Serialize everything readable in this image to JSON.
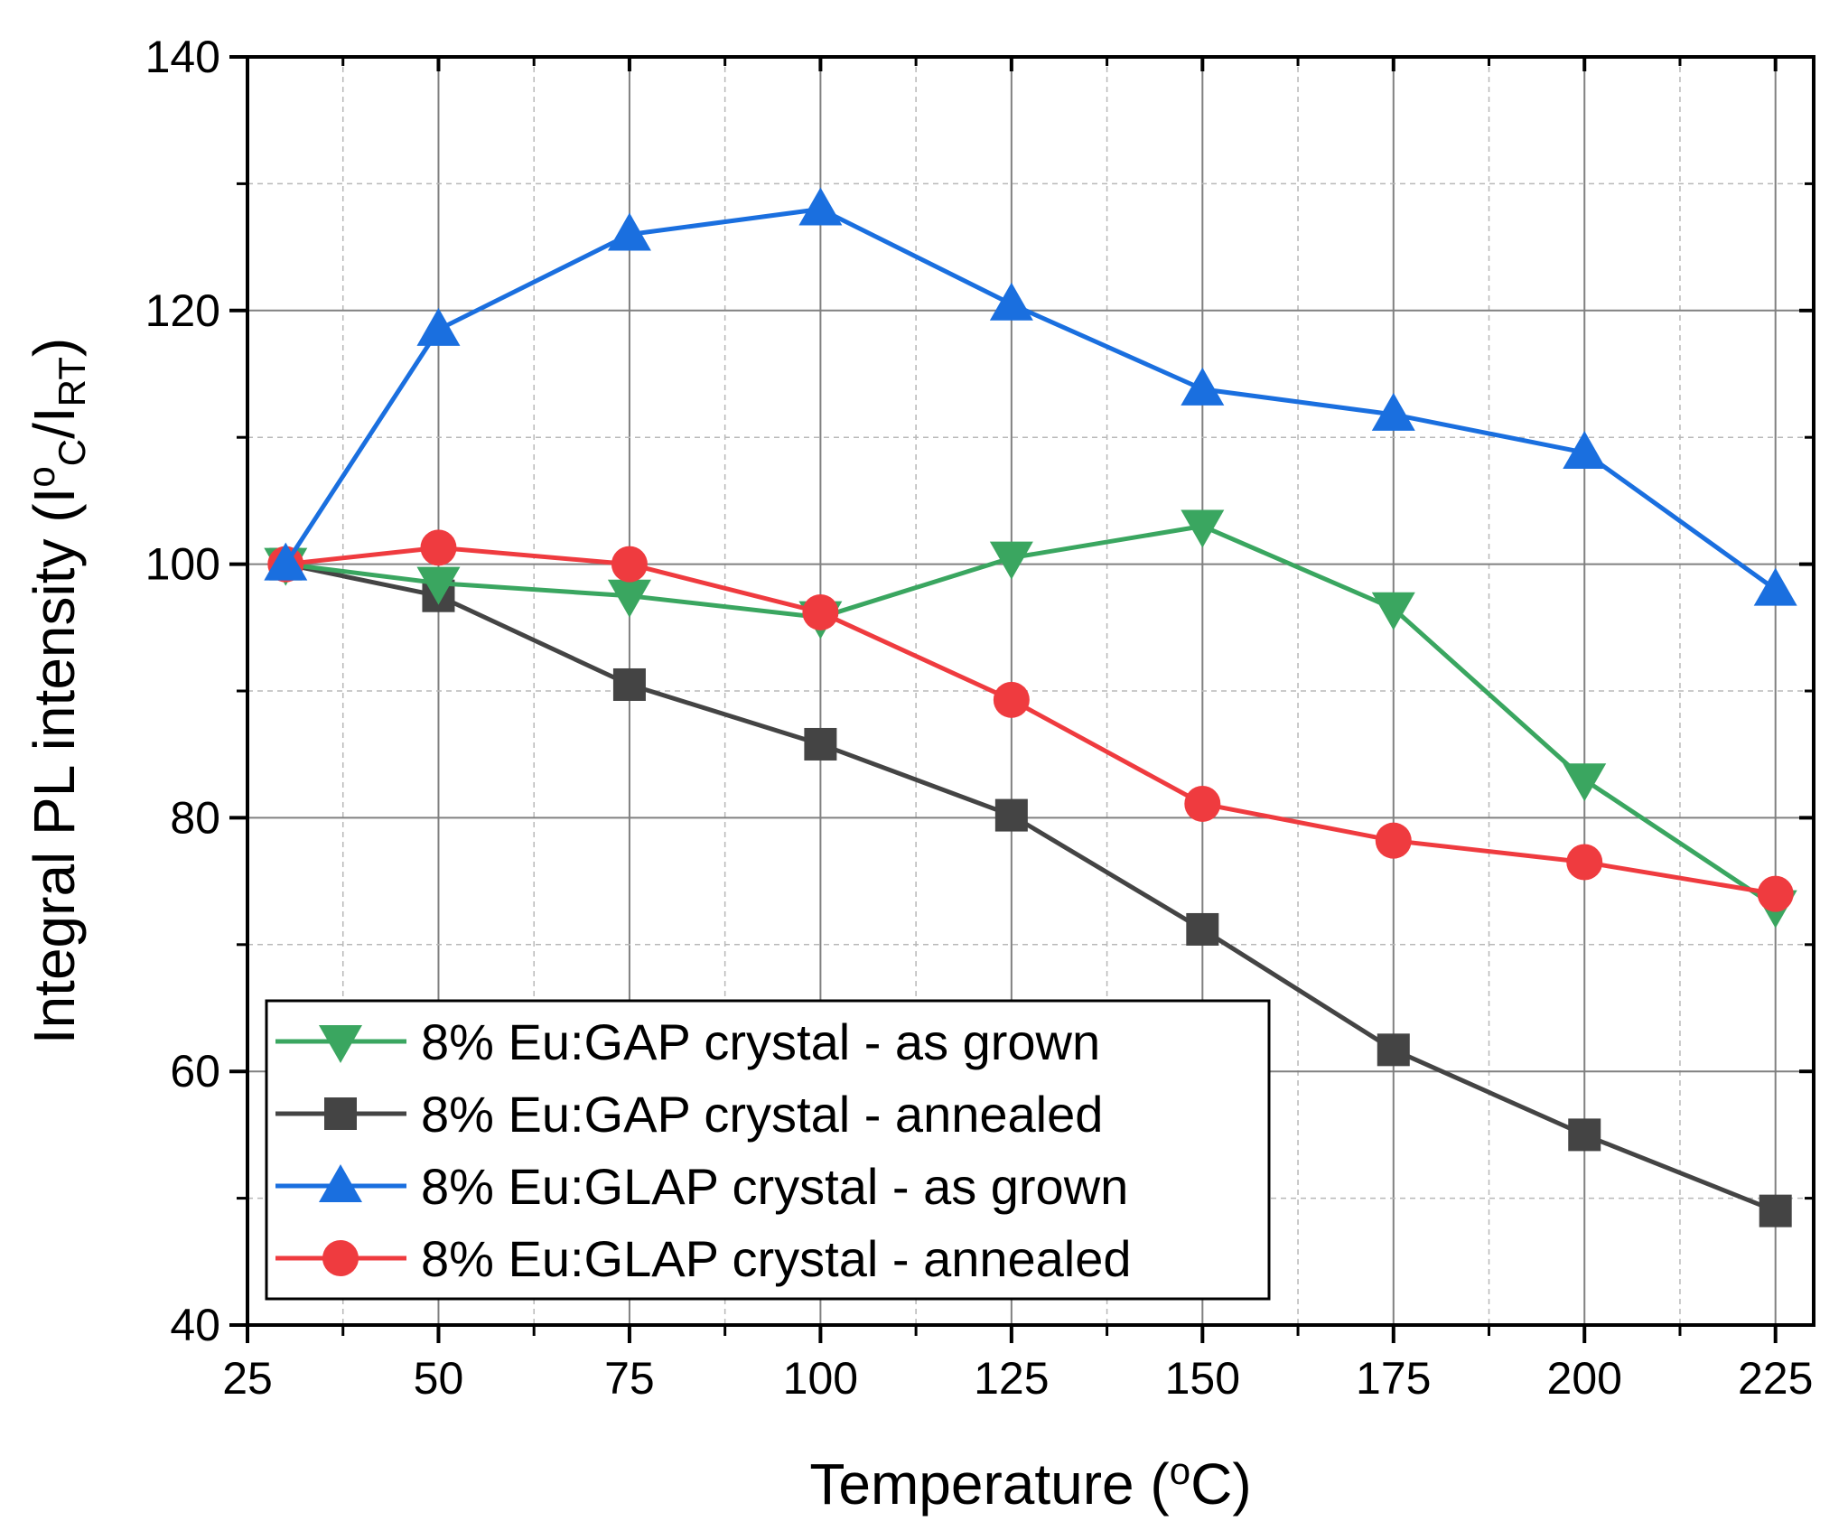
{
  "chart_data": {
    "type": "line",
    "title": "",
    "xlabel": {
      "main": "Temperature (",
      "sup": "o",
      "tail": "C)"
    },
    "ylabel": {
      "p1": "Integral PL intensity (I",
      "p2": "o",
      "sub1": "C",
      "p3": "/I",
      "sub2": "RT",
      "p4": ")"
    },
    "x": [
      30,
      50,
      75,
      100,
      125,
      150,
      175,
      200,
      225
    ],
    "xlim": [
      25,
      230
    ],
    "ylim": [
      40,
      140
    ],
    "xticks": [
      25,
      50,
      75,
      100,
      125,
      150,
      175,
      200,
      225
    ],
    "yticks": [
      40,
      60,
      80,
      100,
      120,
      140
    ],
    "xtick_labels": [
      "25",
      "50",
      "75",
      "100",
      "125",
      "150",
      "175",
      "200",
      "225"
    ],
    "ytick_labels": [
      "40",
      "60",
      "80",
      "100",
      "120",
      "140"
    ],
    "grid": true,
    "legend_position": "bottom-left",
    "series": [
      {
        "name": "8% Eu:GAP crystal - as grown",
        "color": "#3aa660",
        "marker": "triangle-down",
        "values": [
          100,
          98.5,
          97.5,
          95.8,
          100.5,
          103,
          96.5,
          83,
          73
        ]
      },
      {
        "name": "8% Eu:GAP crystal - annealed",
        "color": "#444444",
        "marker": "square",
        "values": [
          100,
          97.5,
          90.5,
          85.8,
          80.2,
          71.2,
          61.7,
          55,
          49
        ]
      },
      {
        "name": "8% Eu:GLAP crystal - as grown",
        "color": "#1a6fdf",
        "marker": "triangle-up",
        "values": [
          100,
          118.5,
          126,
          128,
          120.5,
          113.8,
          111.8,
          108.8,
          98
        ]
      },
      {
        "name": "8% Eu:GLAP crystal - annealed",
        "color": "#ef3b3f",
        "marker": "circle",
        "values": [
          100,
          101.3,
          100,
          96.2,
          89.3,
          81.1,
          78.2,
          76.5,
          74
        ]
      }
    ]
  }
}
